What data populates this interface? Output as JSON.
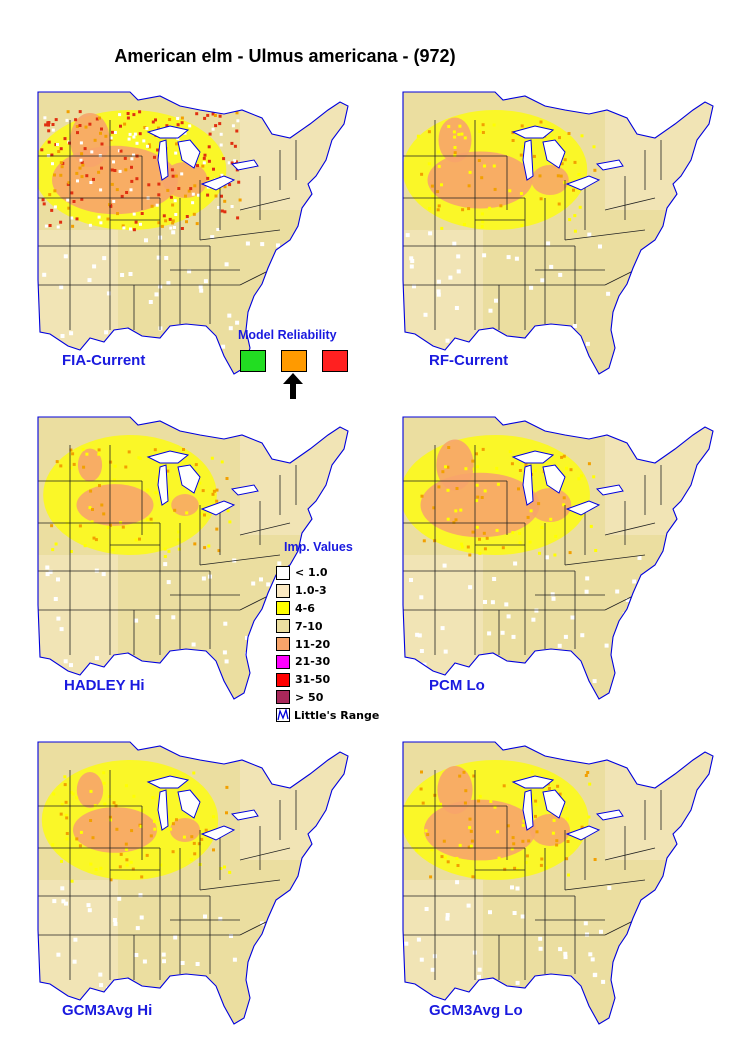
{
  "title": "American elm - Ulmus americana - (972)",
  "panels": [
    {
      "label": "FIA-Current",
      "intensity": 0.9,
      "speckle": true
    },
    {
      "label": "RF-Current",
      "intensity": 0.75,
      "speckle": false
    },
    {
      "label": "HADLEY Hi",
      "intensity": 0.55,
      "speckle": false
    },
    {
      "label": "PCM Lo",
      "intensity": 0.85,
      "speckle": false
    },
    {
      "label": "GCM3Avg Hi",
      "intensity": 0.6,
      "speckle": false
    },
    {
      "label": "GCM3Avg Lo",
      "intensity": 0.8,
      "speckle": false
    }
  ],
  "reliability": {
    "title": "Model Reliability",
    "levels": [
      {
        "color": "#22dd22"
      },
      {
        "color": "#ff9a00",
        "selected": true
      },
      {
        "color": "#ff2020"
      }
    ]
  },
  "legend": {
    "title": "Imp. Values",
    "items": [
      {
        "label": "< 1.0",
        "color": "#ffffff"
      },
      {
        "label": "1.0-3",
        "color": "#fbe9c2"
      },
      {
        "label": "4-6",
        "color": "#ffff00"
      },
      {
        "label": "7-10",
        "color": "#ebdea0"
      },
      {
        "label": "11-20",
        "color": "#f7a46a"
      },
      {
        "label": "21-30",
        "color": "#ff00ff"
      },
      {
        "label": "31-50",
        "color": "#ff0000"
      },
      {
        "label": "> 50",
        "color": "#a8285a"
      }
    ],
    "range_label": "Little's Range"
  },
  "colors": {
    "label_blue": "#1a1adf",
    "boundary": "#222222",
    "coast": "#0000dd",
    "land_light": "#f1e4b5",
    "land_mid": "#ebdea0",
    "yellow": "#ffff00",
    "orange": "#f7a46a",
    "core": "#f2a000",
    "red": "#e03010"
  }
}
